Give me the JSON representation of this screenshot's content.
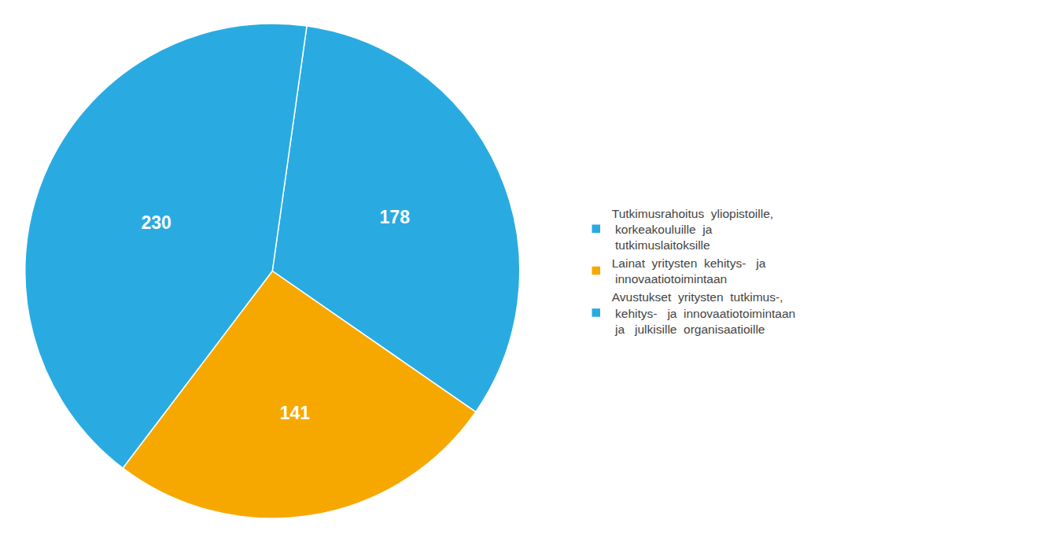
{
  "chart_data": {
    "type": "pie",
    "categories": [
      "Tutkimusrahoitus  yliopistoille,\n korkeakouluille  ja\n tutkimuslaitoksille",
      "Lainat  yritysten  kehitys-   ja\n innovaatiotoimintaan",
      "Avustukset  yritysten  tutkimus-,\n kehitys-   ja  innovaatiotoimintaan\n ja   julkisille  organisaatioille"
    ],
    "values": [
      178,
      141,
      230
    ],
    "colors": [
      "#29ABE2",
      "#F7A800",
      "#29ABE2"
    ],
    "data_labels": true,
    "legend": "right"
  }
}
